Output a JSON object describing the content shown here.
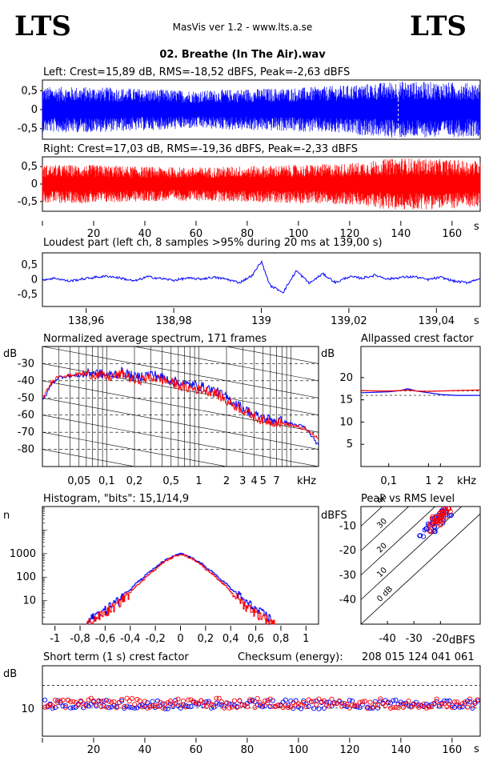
{
  "header": {
    "logo_left": "LTS",
    "logo_right": "LTS",
    "app_title": "MasVis ver 1.2 - www.lts.a.se",
    "track_title": "02. Breathe (In The Air).wav"
  },
  "colors": {
    "left": "#0000ff",
    "right": "#ff0000",
    "axis": "#000000",
    "grid": "#000000"
  },
  "chart_data": [
    {
      "type": "line",
      "id": "waveform_left",
      "title": "Left: Crest=15,89 dB, RMS=-18,52 dBFS, Peak=-2,63 dBFS",
      "y_ticks": [
        "0,5",
        "0",
        "-0,5"
      ],
      "y_tick_values": [
        0.5,
        0,
        -0.5
      ],
      "ylim": [
        -0.78,
        0.78
      ],
      "xlim": [
        0,
        171
      ],
      "marker_time_s": 139.0,
      "envelope": {
        "x": [
          0,
          20,
          40,
          60,
          80,
          100,
          120,
          139,
          160,
          171
        ],
        "amplitude": [
          0.6,
          0.6,
          0.55,
          0.5,
          0.55,
          0.58,
          0.65,
          0.75,
          0.72,
          0.7
        ]
      }
    },
    {
      "type": "line",
      "id": "waveform_right",
      "title": "Right: Crest=17,03 dB, RMS=-19,36 dBFS, Peak=-2,33 dBFS",
      "y_ticks": [
        "0,5",
        "0",
        "-0,5"
      ],
      "y_tick_values": [
        0.5,
        0,
        -0.5
      ],
      "ylim": [
        -0.78,
        0.78
      ],
      "xlim": [
        0,
        171
      ],
      "x_ticks": [
        "20",
        "40",
        "60",
        "80",
        "100",
        "120",
        "140",
        "160"
      ],
      "x_tick_values": [
        20,
        40,
        60,
        80,
        100,
        120,
        140,
        160
      ],
      "x_unit": "s",
      "envelope": {
        "x": [
          0,
          20,
          40,
          60,
          80,
          100,
          120,
          139,
          160,
          171
        ],
        "amplitude": [
          0.55,
          0.55,
          0.5,
          0.48,
          0.52,
          0.55,
          0.6,
          0.76,
          0.7,
          0.68
        ]
      }
    },
    {
      "type": "line",
      "id": "loudest_part",
      "title": "Loudest part (left  ch, 8 samples >95% during 20 ms at 139,00 s)",
      "y_ticks": [
        "0,5",
        "0",
        "-0,5"
      ],
      "y_tick_values": [
        0.5,
        0,
        -0.5
      ],
      "ylim": [
        -0.9,
        0.9
      ],
      "xlim": [
        138.95,
        139.05
      ],
      "x_ticks": [
        "138,96",
        "138,98",
        "139",
        "139,02",
        "139,04"
      ],
      "x_tick_values": [
        138.96,
        138.98,
        139.0,
        139.02,
        139.04
      ],
      "x_unit": "s",
      "series": [
        {
          "x": [
            138.95,
            138.953,
            138.956,
            138.959,
            138.962,
            138.965,
            138.968,
            138.971,
            138.974,
            138.977,
            138.98,
            138.983,
            138.986,
            138.989,
            138.992,
            138.995,
            138.998,
            139.0,
            139.002,
            139.005,
            139.008,
            139.011,
            139.014,
            139.017,
            139.02,
            139.023,
            139.026,
            139.029,
            139.032,
            139.035,
            139.038,
            139.041,
            139.044,
            139.047,
            139.05
          ],
          "y": [
            0.0,
            0.05,
            -0.05,
            0.02,
            0.08,
            0.12,
            0.05,
            -0.05,
            0.1,
            0.04,
            -0.02,
            0.05,
            0.02,
            0.08,
            0.02,
            -0.1,
            0.15,
            0.62,
            -0.2,
            -0.42,
            0.3,
            -0.12,
            0.2,
            -0.1,
            0.1,
            0.05,
            0.15,
            0.02,
            0.08,
            0.1,
            0.0,
            0.08,
            -0.05,
            -0.1,
            0.05
          ]
        }
      ]
    },
    {
      "type": "line",
      "id": "spectrum",
      "title": "Normalized average spectrum, 171 frames",
      "ylabel": "dB",
      "ylim": [
        -90,
        -20
      ],
      "y_ticks": [
        "-30",
        "-40",
        "-50",
        "-60",
        "-70",
        "-80"
      ],
      "y_tick_values": [
        -30,
        -40,
        -50,
        -60,
        -70,
        -80
      ],
      "x_scale": "log",
      "xlim": [
        0.02,
        20
      ],
      "x_ticks": [
        "0,05",
        "0,1",
        "0,2",
        "0,5",
        "1",
        "2",
        "3",
        "4",
        "5",
        "7"
      ],
      "x_tick_values": [
        0.05,
        0.1,
        0.2,
        0.5,
        1,
        2,
        3,
        4,
        5,
        7
      ],
      "x_unit": "kHz",
      "series": [
        {
          "name": "",
          "x": [
            0.02,
            0.025,
            0.03,
            0.04,
            0.05,
            0.07,
            0.1,
            0.15,
            0.2,
            0.3,
            0.5,
            0.7,
            1,
            1.5,
            2,
            3,
            4,
            5,
            7,
            10,
            14,
            20
          ],
          "y": [
            -52,
            -42,
            -38,
            -37,
            -37,
            -35,
            -37,
            -35,
            -38,
            -36,
            -40,
            -42,
            -43,
            -46,
            -50,
            -56,
            -60,
            -62,
            -63,
            -65,
            -67,
            -78
          ]
        },
        {
          "name": "",
          "x": [
            0.02,
            0.025,
            0.03,
            0.04,
            0.05,
            0.07,
            0.1,
            0.15,
            0.2,
            0.3,
            0.5,
            0.7,
            1,
            1.5,
            2,
            3,
            4,
            5,
            7,
            10,
            14,
            20
          ],
          "y": [
            -50,
            -41,
            -37,
            -37,
            -36,
            -36,
            -38,
            -36,
            -40,
            -38,
            -41,
            -44,
            -45,
            -47,
            -52,
            -57,
            -61,
            -63,
            -64,
            -66,
            -68,
            -74
          ]
        }
      ]
    },
    {
      "type": "line",
      "id": "allpassed_crest",
      "title": "Allpassed crest factor",
      "ylabel": "dB",
      "ylim": [
        0,
        27
      ],
      "y_ticks": [
        "20",
        "15",
        "10",
        "5"
      ],
      "y_tick_values": [
        20,
        15,
        10,
        5
      ],
      "x_scale": "log",
      "xlim": [
        0.02,
        20
      ],
      "x_ticks": [
        "0,1",
        "1",
        "2"
      ],
      "x_tick_values": [
        0.1,
        1,
        2
      ],
      "x_unit": "kHz",
      "series": [
        {
          "x": [
            0.02,
            0.05,
            0.1,
            0.2,
            0.3,
            0.5,
            1,
            2,
            5,
            20
          ],
          "y": [
            16.6,
            16.7,
            16.8,
            17.1,
            17.5,
            17.0,
            16.6,
            16.2,
            16.0,
            16.0
          ]
        },
        {
          "x": [
            0.02,
            0.05,
            0.1,
            0.2,
            0.3,
            0.5,
            1,
            2,
            5,
            20
          ],
          "y": [
            17.1,
            17.0,
            17.0,
            17.1,
            17.2,
            17.0,
            16.9,
            17.0,
            17.1,
            17.2
          ]
        }
      ]
    },
    {
      "type": "line",
      "id": "histogram",
      "title": "Histogram, \"bits\": 15,1/14,9",
      "ylabel": "n",
      "y_scale": "log",
      "ylim": [
        1,
        100000
      ],
      "y_ticks": [
        "1000",
        "100",
        "10"
      ],
      "y_tick_values": [
        1000,
        100,
        10
      ],
      "xlim": [
        -1.1,
        1.1
      ],
      "x_ticks": [
        "-1",
        "-0,8",
        "-0,6",
        "-0,4",
        "-0,2",
        "0",
        "0,2",
        "0,4",
        "0,6",
        "0,8",
        "1"
      ],
      "x_tick_values": [
        -1,
        -0.8,
        -0.6,
        -0.4,
        -0.2,
        0,
        0.2,
        0.4,
        0.6,
        0.8,
        1
      ],
      "series": [
        {
          "x": [
            -0.75,
            -0.7,
            -0.6,
            -0.5,
            -0.4,
            -0.3,
            -0.2,
            -0.1,
            0,
            0.1,
            0.2,
            0.3,
            0.4,
            0.5,
            0.6,
            0.7,
            0.75
          ],
          "y": [
            1,
            2,
            4,
            10,
            30,
            90,
            250,
            600,
            1000,
            600,
            250,
            90,
            30,
            10,
            4,
            2,
            1
          ]
        },
        {
          "x": [
            -0.75,
            -0.7,
            -0.6,
            -0.5,
            -0.4,
            -0.3,
            -0.2,
            -0.1,
            0,
            0.1,
            0.2,
            0.3,
            0.4,
            0.5,
            0.6,
            0.7,
            0.75
          ],
          "y": [
            1,
            1.5,
            3,
            7,
            22,
            70,
            210,
            550,
            950,
            550,
            210,
            70,
            22,
            7,
            3,
            1.5,
            1
          ]
        }
      ]
    },
    {
      "type": "scatter",
      "id": "peak_vs_rms",
      "title": "Peak vs RMS level",
      "ylabel": "dBFS",
      "xlabel": "dBFS",
      "xlim": [
        -50,
        -5
      ],
      "ylim": [
        -50,
        -2
      ],
      "x_ticks": [
        "-40",
        "-30",
        "-20"
      ],
      "x_tick_values": [
        -40,
        -30,
        -20
      ],
      "y_ticks": [
        "-10",
        "-20",
        "-30",
        "-40"
      ],
      "y_tick_values": [
        -10,
        -20,
        -30,
        -40
      ],
      "crest_lines": [
        "0 dB",
        "10",
        "20",
        "30",
        "40"
      ],
      "crest_line_values": [
        0,
        10,
        20,
        30,
        40
      ],
      "series": [
        {
          "x": [
            -27,
            -25,
            -24,
            -22,
            -21,
            -20,
            -19,
            -18,
            -20,
            -22,
            -19,
            -17,
            -23
          ],
          "y": [
            -14,
            -12,
            -10,
            -8,
            -7,
            -6,
            -5,
            -5,
            -8,
            -9,
            -4,
            -6,
            -11
          ]
        },
        {
          "x": [
            -24,
            -23,
            -22,
            -21,
            -20,
            -19,
            -18,
            -17,
            -21,
            -20,
            -19,
            -22,
            -18
          ],
          "y": [
            -11,
            -9,
            -8,
            -7,
            -6,
            -5,
            -4,
            -4,
            -8,
            -9,
            -7,
            -6,
            -5
          ]
        }
      ]
    },
    {
      "type": "scatter",
      "id": "short_term_crest",
      "title": "Short term (1 s) crest factor",
      "checksum_label": "Checksum (energy):",
      "checksum_value": "208 015 124 041 061",
      "ylabel": "dB",
      "ylim": [
        0,
        25
      ],
      "y_ticks": [
        "10"
      ],
      "y_tick_values": [
        10
      ],
      "dashed_lines": [
        10,
        18
      ],
      "xlim": [
        0,
        171
      ],
      "x_ticks": [
        "20",
        "40",
        "60",
        "80",
        "100",
        "120",
        "140",
        "160"
      ],
      "x_tick_values": [
        20,
        40,
        60,
        80,
        100,
        120,
        140,
        160
      ],
      "x_unit": "s",
      "series_mean": [
        {
          "level": 11.3,
          "spread": 1.6
        },
        {
          "level": 11.7,
          "spread": 1.8
        }
      ]
    }
  ]
}
